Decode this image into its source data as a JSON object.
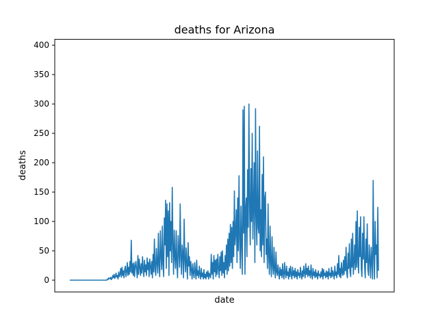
{
  "chart_data": {
    "type": "line",
    "title": "deaths for Arizona",
    "xlabel": "date",
    "ylabel": "deaths",
    "ylim": [
      -20,
      410
    ],
    "yticks": [
      0,
      50,
      100,
      150,
      200,
      250,
      300,
      350,
      400
    ],
    "grid": false,
    "series": [
      {
        "color": "#1f77b4",
        "values": [
          0,
          0,
          0,
          0,
          0,
          0,
          0,
          0,
          0,
          0,
          0,
          0,
          0,
          0,
          0,
          0,
          0,
          0,
          0,
          0,
          0,
          0,
          0,
          0,
          0,
          0,
          0,
          0,
          0,
          0,
          0,
          0,
          0,
          0,
          0,
          0,
          0,
          0,
          0,
          0,
          0,
          0,
          0,
          0,
          0,
          0,
          0,
          0,
          0,
          0,
          0,
          0,
          0,
          0,
          0,
          0,
          0,
          2,
          1,
          4,
          3,
          2,
          5,
          1,
          3,
          8,
          4,
          10,
          3,
          6,
          12,
          5,
          8,
          2,
          14,
          6,
          10,
          20,
          5,
          22,
          8,
          16,
          4,
          18,
          24,
          6,
          14,
          30,
          8,
          22,
          10,
          32,
          14,
          68,
          12,
          28,
          8,
          30,
          6,
          24,
          32,
          18,
          4,
          42,
          10,
          36,
          22,
          8,
          28,
          12,
          40,
          20,
          6,
          34,
          14,
          26,
          8,
          38,
          18,
          30,
          6,
          36,
          24,
          10,
          32,
          4,
          44,
          14,
          70,
          20,
          8,
          54,
          30,
          12,
          80,
          26,
          6,
          84,
          40,
          18,
          92,
          28,
          6,
          106,
          60,
          136,
          20,
          130,
          40,
          118,
          8,
          132,
          50,
          100,
          30,
          158,
          60,
          10,
          85,
          40,
          20,
          84,
          30,
          4,
          76,
          48,
          22,
          130,
          40,
          10,
          60,
          46,
          4,
          104,
          34,
          14,
          55,
          28,
          2,
          64,
          24,
          40,
          8,
          32,
          18,
          2,
          28,
          12,
          4,
          30,
          14,
          2,
          34,
          8,
          16,
          4,
          24,
          10,
          2,
          20,
          6,
          12,
          2,
          18,
          4,
          10,
          2,
          14,
          6,
          16,
          2,
          12,
          8,
          4,
          44,
          10,
          30,
          2,
          42,
          14,
          34,
          6,
          36,
          10,
          44,
          20,
          4,
          40,
          16,
          48,
          8,
          50,
          12,
          30,
          4,
          42,
          18,
          60,
          10,
          70,
          16,
          80,
          24,
          95,
          30,
          90,
          20,
          100,
          40,
          152,
          60,
          80,
          120,
          30,
          140,
          50,
          178,
          70,
          20,
          126,
          60,
          10,
          290,
          80,
          296,
          10,
          120,
          140,
          40,
          188,
          90,
          300,
          130,
          60,
          190,
          100,
          250,
          70,
          130,
          200,
          30,
          292,
          110,
          60,
          220,
          90,
          80,
          262,
          50,
          120,
          40,
          180,
          60,
          210,
          30,
          140,
          150,
          44,
          70,
          20,
          130,
          40,
          10,
          92,
          30,
          6,
          74,
          24,
          10,
          56,
          18,
          4,
          48,
          14,
          8,
          26,
          12,
          2,
          22,
          8,
          18,
          4,
          28,
          10,
          2,
          30,
          12,
          4,
          24,
          8,
          14,
          2,
          20,
          6,
          24,
          10,
          2,
          22,
          8,
          16,
          4,
          20,
          6,
          14,
          2,
          18,
          8,
          12,
          4,
          22,
          10,
          2,
          16,
          6,
          24,
          12,
          4,
          28,
          10,
          20,
          6,
          24,
          8,
          16,
          4,
          26,
          10,
          2,
          20,
          8,
          14,
          4,
          18,
          6,
          12,
          2,
          16,
          8,
          10,
          4,
          14,
          6,
          20,
          2,
          18,
          8,
          12,
          4,
          16,
          6,
          14,
          2,
          20,
          8,
          12,
          4,
          22,
          6,
          16,
          10,
          2,
          24,
          8,
          14,
          4,
          28,
          10,
          42,
          6,
          20,
          4,
          30,
          12,
          8,
          34,
          10,
          40,
          16,
          56,
          12,
          4,
          46,
          20,
          62,
          14,
          6,
          70,
          22,
          80,
          10,
          30,
          60,
          18,
          100,
          22,
          118,
          30,
          12,
          90,
          40,
          108,
          20,
          6,
          80,
          36,
          108,
          24,
          4,
          70,
          30,
          96,
          18,
          8,
          60,
          36,
          4,
          56,
          30,
          2,
          170,
          38,
          2,
          100,
          44,
          60,
          4,
          124,
          16
        ]
      }
    ]
  }
}
